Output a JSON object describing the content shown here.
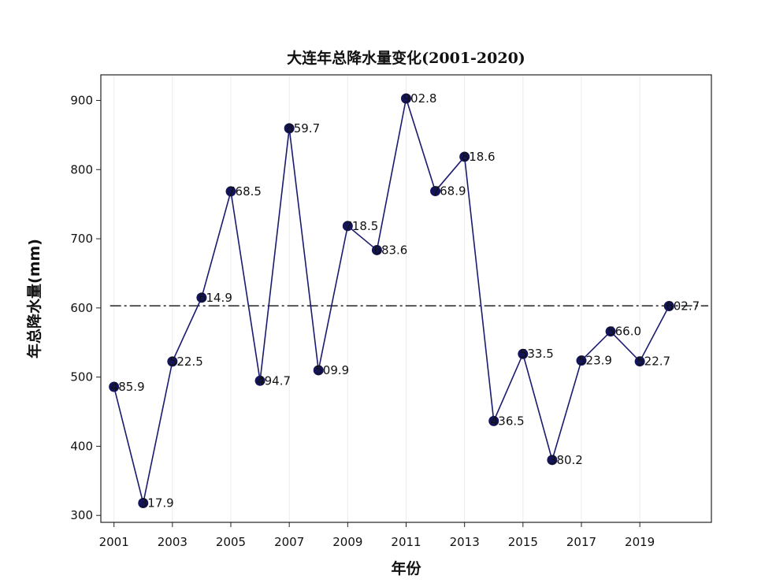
{
  "chart_data": {
    "type": "line",
    "title": "大连年总降水量变化(2001-2020)",
    "xlabel": "年份",
    "ylabel": "年总降水量(mm)",
    "xlim": [
      2000.55,
      2021.45
    ],
    "ylim": [
      290,
      937
    ],
    "x_ticks": [
      2001,
      2003,
      2005,
      2007,
      2009,
      2011,
      2013,
      2015,
      2017,
      2019
    ],
    "x_tick_labels": [
      "2001",
      "2003",
      "2005",
      "2007",
      "2009",
      "2011",
      "2013",
      "2015",
      "2017",
      "2019"
    ],
    "y_ticks": [
      300,
      400,
      500,
      600,
      700,
      800,
      900
    ],
    "y_tick_labels": [
      "300",
      "400",
      "500",
      "600",
      "700",
      "800",
      "900"
    ],
    "grid": "vertical",
    "series": [
      {
        "x": [
          2001,
          2002,
          2003,
          2004,
          2005,
          2006,
          2007,
          2008,
          2009,
          2010,
          2011,
          2012,
          2013,
          2014,
          2015,
          2016,
          2017,
          2018,
          2019,
          2020
        ],
        "values": [
          485.9,
          317.9,
          522.5,
          614.9,
          768.5,
          494.7,
          859.7,
          509.9,
          718.5,
          683.6,
          902.8,
          768.9,
          818.6,
          436.5,
          533.5,
          380.2,
          523.9,
          566.0,
          522.7,
          602.7
        ],
        "labels": [
          "485.9",
          "317.9",
          "522.5",
          "614.9",
          "768.5",
          "494.7",
          "859.7",
          "509.9",
          "718.5",
          "683.6",
          "902.8",
          "768.9",
          "818.6",
          "436.5",
          "533.5",
          "380.2",
          "523.9",
          "566.0",
          "522.7",
          "602.7"
        ],
        "color": "#1a1a6e"
      }
    ],
    "reference_line": {
      "y": 603,
      "style": "dashed"
    }
  }
}
